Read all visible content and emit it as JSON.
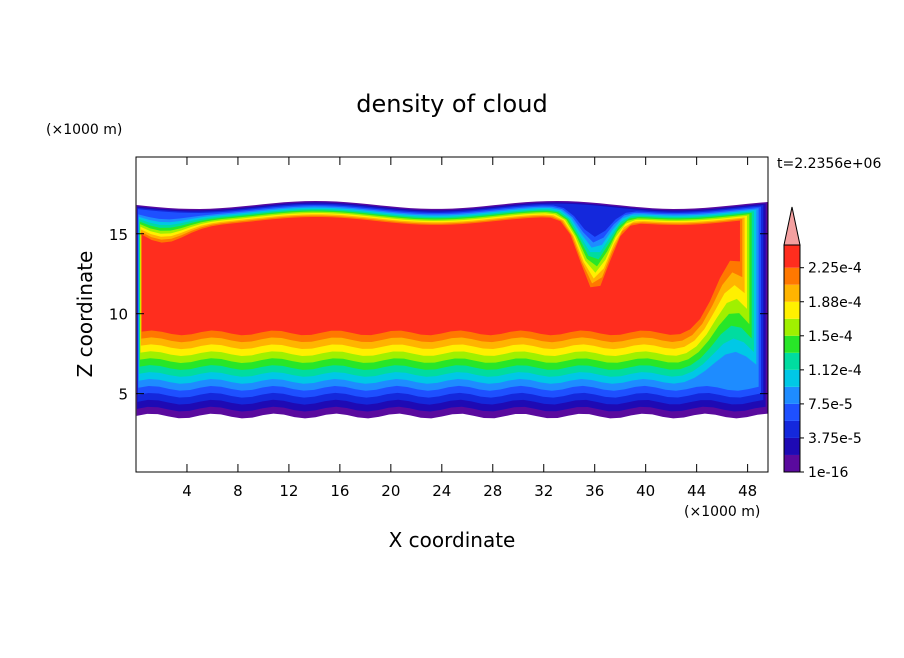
{
  "chart_data": {
    "type": "contour",
    "title": "density of cloud",
    "x_label": "X coordinate",
    "y_label": "Z coordinate",
    "x_unit": "(×1000 m)",
    "y_unit": "(×1000 m)",
    "annotation": "t=2.2356e+06",
    "xlim": [
      0,
      49.6
    ],
    "ylim": [
      0.1,
      19.8
    ],
    "xticks": [
      4,
      8,
      12,
      16,
      20,
      24,
      28,
      32,
      36,
      40,
      44,
      48
    ],
    "yticks": [
      5,
      10,
      15
    ],
    "levels": [
      1e-16,
      1.875e-05,
      3.75e-05,
      5.625e-05,
      7.5e-05,
      9.375e-05,
      0.0001125,
      0.00013125,
      0.00015,
      0.00016875,
      0.0001875,
      0.00020625,
      0.000225
    ],
    "level_colors": [
      "#5a0a9e",
      "#1e0ab4",
      "#1428dc",
      "#1e50ff",
      "#1e8cff",
      "#00c8e6",
      "#00dca0",
      "#28e628",
      "#a0f000",
      "#fff000",
      "#ffb400",
      "#ff7800",
      "#ff2d1e"
    ],
    "extend_color": "#f4a0a0",
    "clim": [
      1e-16,
      0.00025
    ],
    "cbar_ticks": [
      {
        "value": 1e-16,
        "label": "1e-16"
      },
      {
        "value": 3.75e-05,
        "label": "3.75e-5"
      },
      {
        "value": 7.5e-05,
        "label": "7.5e-5"
      },
      {
        "value": 0.0001125,
        "label": "1.12e-4"
      },
      {
        "value": 0.00015,
        "label": "1.5e-4"
      },
      {
        "value": 0.0001875,
        "label": "1.88e-4"
      },
      {
        "value": 0.000225,
        "label": "2.25e-4"
      }
    ]
  }
}
